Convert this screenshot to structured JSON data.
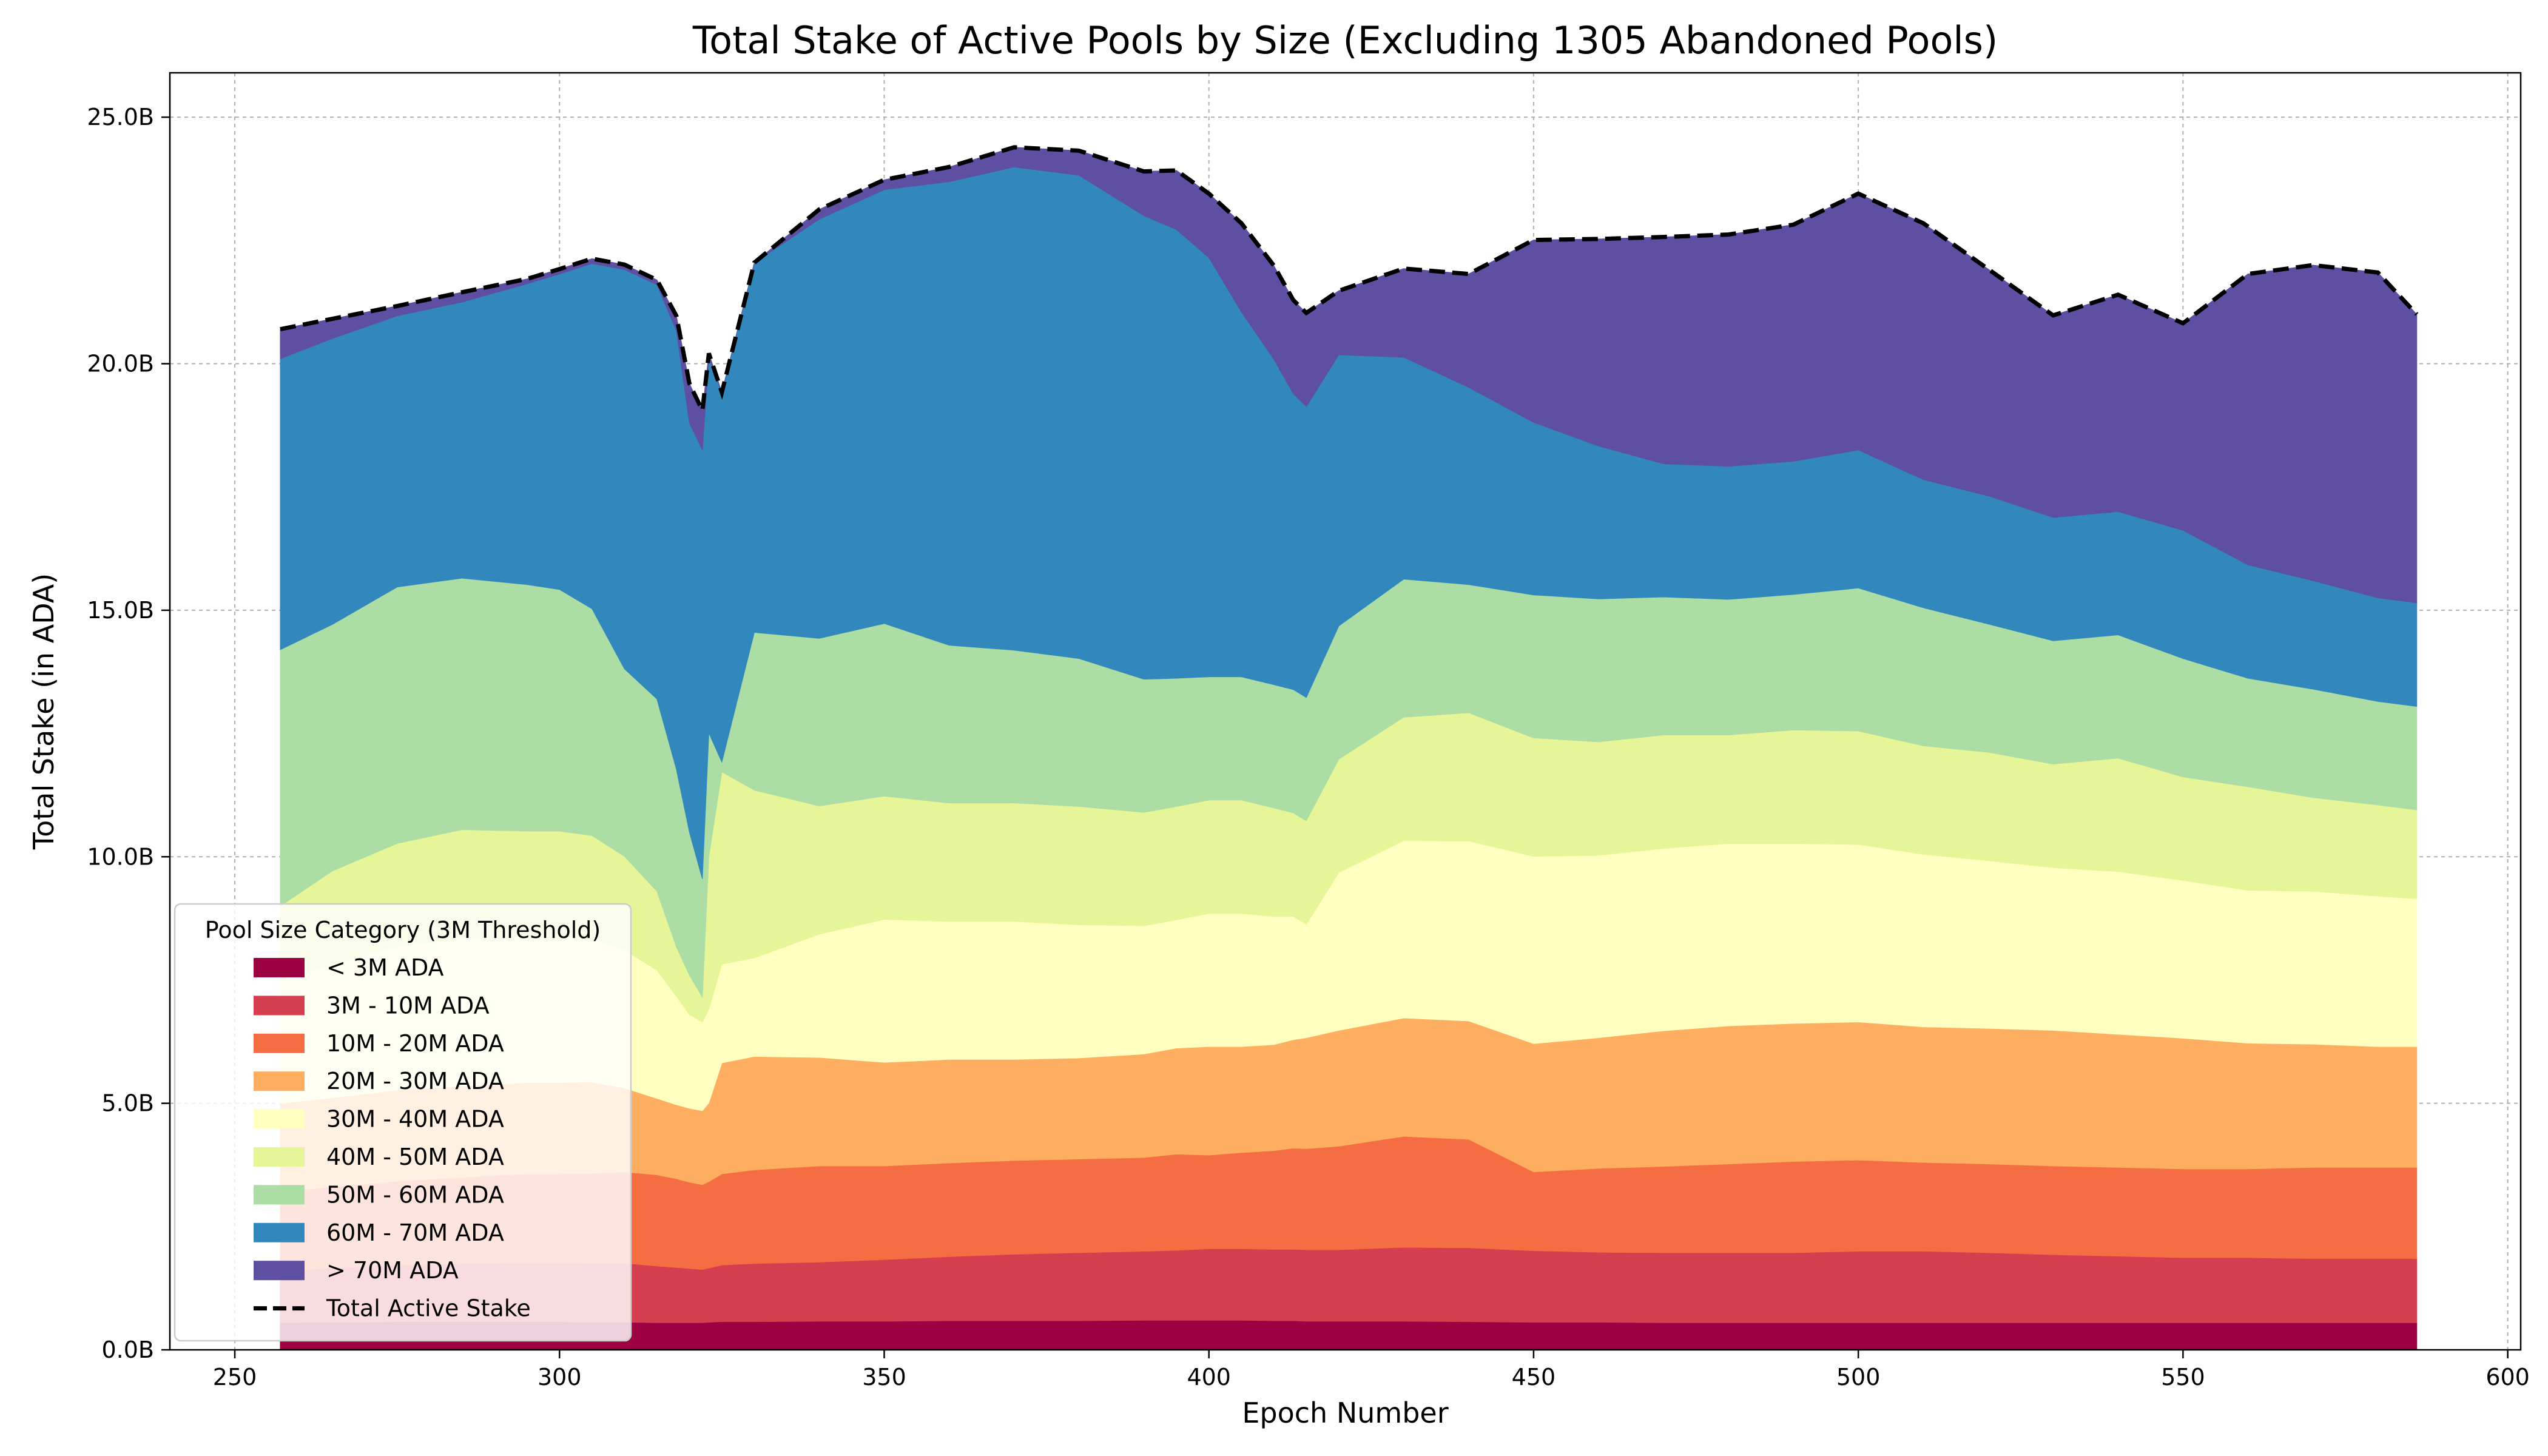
{
  "chart_data": {
    "type": "area",
    "stacked": true,
    "title": "Total Stake of Active Pools by Size (Excluding 1305 Abandoned Pools)",
    "xlabel": "Epoch Number",
    "ylabel": "Total Stake (in ADA)",
    "xlim": [
      240,
      602
    ],
    "ylim": [
      0,
      25.9
    ],
    "x_ticks": [
      250,
      300,
      350,
      400,
      450,
      500,
      550,
      600
    ],
    "y_ticks": [
      0,
      5,
      10,
      15,
      20,
      25
    ],
    "y_tick_labels": [
      "0.0B",
      "5.0B",
      "10.0B",
      "15.0B",
      "20.0B",
      "25.0B"
    ],
    "grid": true,
    "legend": {
      "title": "Pool Size Category (3M Threshold)",
      "position": "lower-left"
    },
    "units": "B ADA",
    "x": [
      257,
      265,
      275,
      285,
      295,
      300,
      305,
      310,
      315,
      318,
      320,
      322,
      323,
      325,
      330,
      340,
      350,
      360,
      370,
      380,
      390,
      395,
      400,
      405,
      410,
      413,
      415,
      420,
      430,
      440,
      450,
      460,
      470,
      480,
      490,
      500,
      510,
      520,
      530,
      540,
      550,
      560,
      570,
      580,
      586
    ],
    "series": [
      {
        "name": "< 3M ADA",
        "color": "#9e0142",
        "values": [
          0.55,
          0.56,
          0.57,
          0.57,
          0.57,
          0.57,
          0.56,
          0.56,
          0.55,
          0.55,
          0.55,
          0.55,
          0.56,
          0.57,
          0.57,
          0.58,
          0.58,
          0.59,
          0.59,
          0.59,
          0.6,
          0.6,
          0.6,
          0.6,
          0.59,
          0.59,
          0.58,
          0.58,
          0.58,
          0.57,
          0.56,
          0.56,
          0.55,
          0.55,
          0.55,
          0.55,
          0.55,
          0.55,
          0.55,
          0.55,
          0.55,
          0.55,
          0.55,
          0.55,
          0.55
        ]
      },
      {
        "name": "3M - 10M ADA",
        "color": "#d53e4f",
        "values": [
          1.05,
          1.1,
          1.15,
          1.18,
          1.2,
          1.2,
          1.2,
          1.2,
          1.15,
          1.12,
          1.1,
          1.08,
          1.1,
          1.15,
          1.18,
          1.2,
          1.25,
          1.3,
          1.35,
          1.38,
          1.4,
          1.42,
          1.45,
          1.45,
          1.45,
          1.45,
          1.45,
          1.45,
          1.5,
          1.5,
          1.45,
          1.42,
          1.42,
          1.42,
          1.42,
          1.45,
          1.45,
          1.42,
          1.38,
          1.35,
          1.32,
          1.32,
          1.3,
          1.3,
          1.3
        ]
      },
      {
        "name": "10M - 20M ADA",
        "color": "#f46d43",
        "values": [
          1.6,
          1.65,
          1.7,
          1.75,
          1.8,
          1.8,
          1.82,
          1.85,
          1.85,
          1.8,
          1.75,
          1.72,
          1.75,
          1.85,
          1.9,
          1.95,
          1.9,
          1.9,
          1.9,
          1.9,
          1.9,
          1.95,
          1.9,
          1.95,
          2.0,
          2.05,
          2.05,
          2.1,
          2.25,
          2.2,
          1.6,
          1.7,
          1.75,
          1.8,
          1.85,
          1.85,
          1.8,
          1.8,
          1.8,
          1.8,
          1.8,
          1.8,
          1.85,
          1.85,
          1.85
        ]
      },
      {
        "name": "20M - 30M ADA",
        "color": "#fdae61",
        "values": [
          1.8,
          1.8,
          1.85,
          1.85,
          1.85,
          1.85,
          1.85,
          1.7,
          1.55,
          1.5,
          1.5,
          1.5,
          1.6,
          2.25,
          2.3,
          2.2,
          2.1,
          2.1,
          2.05,
          2.05,
          2.1,
          2.15,
          2.2,
          2.15,
          2.15,
          2.2,
          2.25,
          2.35,
          2.4,
          2.4,
          2.6,
          2.65,
          2.75,
          2.8,
          2.8,
          2.8,
          2.75,
          2.75,
          2.75,
          2.7,
          2.65,
          2.55,
          2.5,
          2.45,
          2.45
        ]
      },
      {
        "name": "30M - 40M ADA",
        "color": "#ffffbf",
        "values": [
          2.5,
          2.7,
          2.9,
          3.0,
          3.0,
          3.0,
          2.9,
          2.8,
          2.6,
          2.2,
          1.9,
          1.8,
          1.9,
          2.0,
          2.0,
          2.5,
          2.9,
          2.8,
          2.8,
          2.7,
          2.6,
          2.6,
          2.7,
          2.7,
          2.6,
          2.5,
          2.3,
          3.2,
          3.6,
          3.65,
          3.8,
          3.7,
          3.7,
          3.7,
          3.65,
          3.6,
          3.5,
          3.4,
          3.3,
          3.3,
          3.2,
          3.1,
          3.1,
          3.05,
          3.0
        ]
      },
      {
        "name": "40M - 50M ADA",
        "color": "#e6f598",
        "values": [
          1.5,
          1.9,
          2.1,
          2.2,
          2.1,
          2.1,
          2.1,
          1.9,
          1.6,
          1.0,
          0.8,
          0.5,
          3.1,
          3.9,
          3.4,
          2.6,
          2.5,
          2.4,
          2.4,
          2.4,
          2.3,
          2.3,
          2.3,
          2.3,
          2.2,
          2.1,
          2.1,
          2.3,
          2.5,
          2.6,
          2.4,
          2.3,
          2.3,
          2.2,
          2.3,
          2.3,
          2.2,
          2.2,
          2.1,
          2.3,
          2.1,
          2.1,
          1.9,
          1.85,
          1.8
        ]
      },
      {
        "name": "50M - 60M ADA",
        "color": "#abdda4",
        "values": [
          5.2,
          5.0,
          5.2,
          5.1,
          5.0,
          4.9,
          4.6,
          3.8,
          3.9,
          3.6,
          2.9,
          2.4,
          2.5,
          0.2,
          3.2,
          3.4,
          3.5,
          3.2,
          3.1,
          3.0,
          2.7,
          2.6,
          2.5,
          2.5,
          2.5,
          2.5,
          2.5,
          2.7,
          2.8,
          2.6,
          2.9,
          2.9,
          2.8,
          2.75,
          2.75,
          2.9,
          2.8,
          2.6,
          2.5,
          2.5,
          2.4,
          2.2,
          2.2,
          2.1,
          2.1
        ]
      },
      {
        "name": "60M - 70M ADA",
        "color": "#3288bd",
        "values": [
          5.9,
          5.8,
          5.5,
          5.6,
          6.1,
          6.4,
          7.0,
          8.1,
          8.4,
          8.9,
          8.3,
          8.7,
          7.6,
          7.5,
          7.5,
          8.5,
          8.8,
          9.4,
          9.8,
          9.8,
          9.4,
          9.1,
          8.5,
          7.4,
          6.6,
          6.0,
          5.9,
          5.5,
          4.5,
          4.0,
          3.5,
          3.1,
          2.7,
          2.7,
          2.7,
          2.8,
          2.6,
          2.6,
          2.5,
          2.5,
          2.6,
          2.3,
          2.2,
          2.1,
          2.1
        ]
      },
      {
        "name": "> 70M ADA",
        "color": "#5e4fa2",
        "values": [
          0.6,
          0.4,
          0.2,
          0.2,
          0.1,
          0.1,
          0.1,
          0.1,
          0.1,
          0.3,
          0.8,
          0.8,
          0.1,
          0.0,
          0.0,
          0.2,
          0.2,
          0.3,
          0.4,
          0.5,
          0.9,
          1.2,
          1.3,
          1.8,
          1.9,
          1.9,
          1.9,
          1.3,
          1.8,
          2.3,
          3.7,
          4.2,
          4.6,
          4.7,
          4.8,
          5.2,
          5.2,
          4.6,
          4.1,
          4.4,
          4.2,
          5.9,
          6.4,
          6.6,
          5.85
        ]
      }
    ],
    "total_series": {
      "name": "Total Active Stake",
      "style": "dashed",
      "color": "#000000"
    }
  }
}
